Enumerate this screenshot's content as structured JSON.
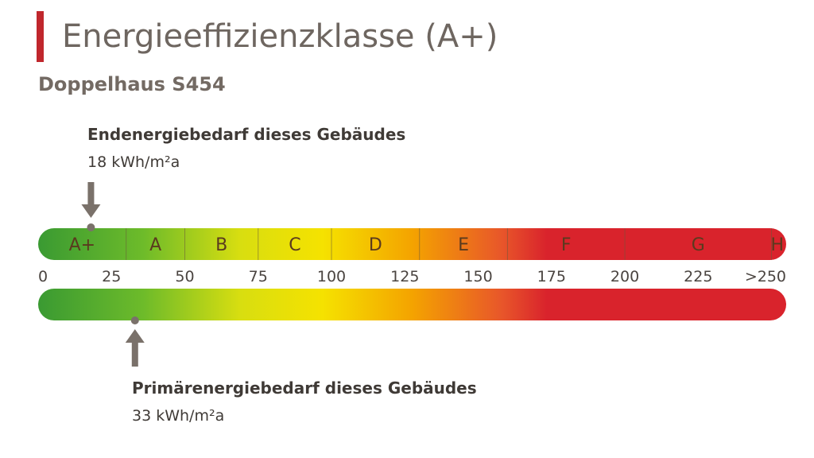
{
  "header": {
    "title": "Energieeffizienzklasse (A+)",
    "subtitle": "Doppelhaus S454"
  },
  "endenergie": {
    "label": "Endenergiebedarf dieses Gebäudes",
    "value_text": "18 kWh/m²a"
  },
  "primaerenergie": {
    "label": "Primärenergiebedarf dieses Gebäudes",
    "value_text": "33 kWh/m²a"
  },
  "colors": {
    "accent": "#c0272d",
    "green": "#3a9a32",
    "yellow": "#f5e200",
    "orange": "#f4a300",
    "red": "#d9232c",
    "marker": "#7a716a"
  },
  "chart_data": {
    "type": "bar",
    "title": "Energieeffizienzklasse (A+)",
    "subtitle": "Doppelhaus S454",
    "xlim": [
      0,
      250
    ],
    "ticks": [
      {
        "value": 0,
        "label": "0"
      },
      {
        "value": 25,
        "label": "25"
      },
      {
        "value": 50,
        "label": "50"
      },
      {
        "value": 75,
        "label": "75"
      },
      {
        "value": 100,
        "label": "100"
      },
      {
        "value": 125,
        "label": "125"
      },
      {
        "value": 150,
        "label": "150"
      },
      {
        "value": 175,
        "label": "175"
      },
      {
        "value": 200,
        "label": "200"
      },
      {
        "value": 225,
        "label": "225"
      },
      {
        "value": 250,
        "label": ">250"
      }
    ],
    "classes": [
      {
        "label": "A+",
        "from": 0,
        "to": 30
      },
      {
        "label": "A",
        "from": 30,
        "to": 50
      },
      {
        "label": "B",
        "from": 50,
        "to": 75
      },
      {
        "label": "C",
        "from": 75,
        "to": 100
      },
      {
        "label": "D",
        "from": 100,
        "to": 130
      },
      {
        "label": "E",
        "from": 130,
        "to": 160
      },
      {
        "label": "F",
        "from": 160,
        "to": 200
      },
      {
        "label": "G",
        "from": 200,
        "to": 250
      },
      {
        "label": "H",
        "from": 250,
        "to": 255
      }
    ],
    "markers": [
      {
        "name": "Endenergiebedarf dieses Gebäudes",
        "value": 18,
        "unit": "kWh/m²a",
        "position": "above"
      },
      {
        "name": "Primärenergiebedarf dieses Gebäudes",
        "value": 33,
        "unit": "kWh/m²a",
        "position": "below"
      }
    ]
  }
}
